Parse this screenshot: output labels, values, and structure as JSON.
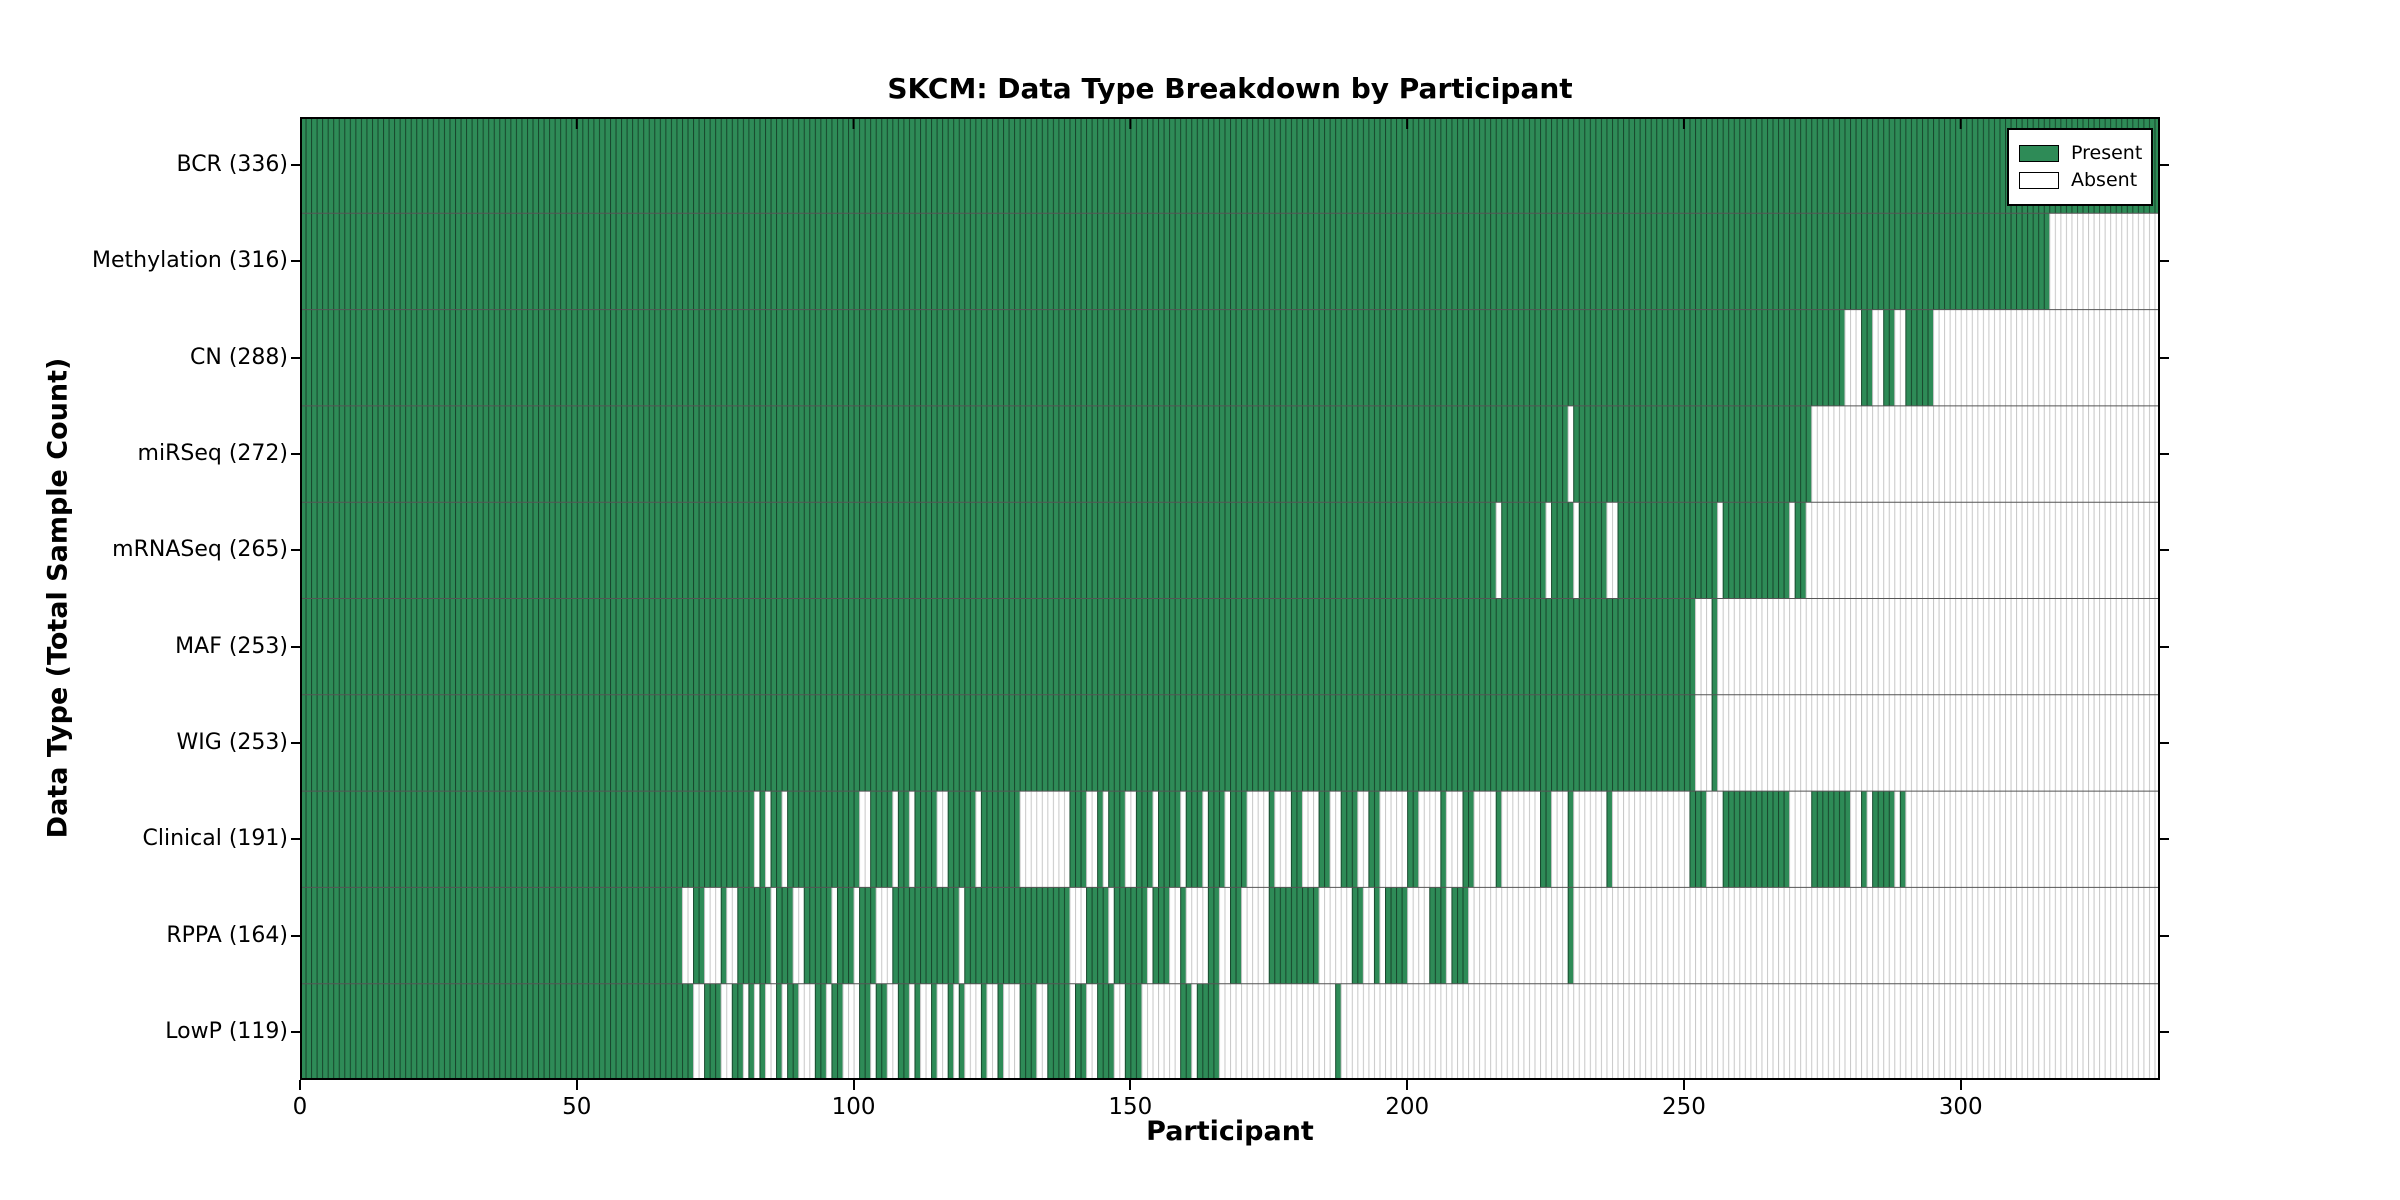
{
  "chart_data": {
    "type": "heatmap",
    "title": "SKCM: Data Type Breakdown by Participant",
    "xlabel": "Participant",
    "ylabel": "Data Type (Total Sample Count)",
    "x_ticks": [
      0,
      50,
      100,
      150,
      200,
      250,
      300
    ],
    "x_max": 336,
    "grid": false,
    "legend_position": "upper-right-inside",
    "colors": {
      "present": "#2e8b57",
      "absent": "#ffffff",
      "frame": "#000000",
      "row_divider": "#555555",
      "present_cell_line": "rgba(0,0,0,0.5)",
      "absent_cell_line": "rgba(0,0,0,0.22)"
    },
    "legend": [
      {
        "label": "Present",
        "color": "#2e8b57"
      },
      {
        "label": "Absent",
        "color": "#ffffff"
      }
    ],
    "rows": [
      {
        "label": "BCR",
        "total": 336,
        "present_segments": [
          [
            0,
            336
          ]
        ]
      },
      {
        "label": "Methylation",
        "total": 316,
        "present_segments": [
          [
            0,
            316
          ]
        ]
      },
      {
        "label": "CN",
        "total": 288,
        "present_segments": [
          [
            0,
            279
          ],
          [
            282,
            284
          ],
          [
            286,
            288
          ],
          [
            290,
            295
          ]
        ]
      },
      {
        "label": "miRSeq",
        "total": 272,
        "present_segments": [
          [
            0,
            229
          ],
          [
            230,
            273
          ]
        ]
      },
      {
        "label": "mRNASeq",
        "total": 265,
        "present_segments": [
          [
            0,
            216
          ],
          [
            217,
            225
          ],
          [
            226,
            230
          ],
          [
            231,
            236
          ],
          [
            238,
            256
          ],
          [
            257,
            269
          ],
          [
            270,
            272
          ]
        ]
      },
      {
        "label": "MAF",
        "total": 253,
        "present_segments": [
          [
            0,
            252
          ],
          [
            255,
            256
          ]
        ]
      },
      {
        "label": "WIG",
        "total": 253,
        "present_segments": [
          [
            0,
            252
          ],
          [
            255,
            256
          ]
        ]
      },
      {
        "label": "Clinical",
        "total": 191,
        "present_segments": [
          [
            0,
            82
          ],
          [
            83,
            84
          ],
          [
            85,
            87
          ],
          [
            88,
            101
          ],
          [
            103,
            107
          ],
          [
            108,
            110
          ],
          [
            111,
            115
          ],
          [
            117,
            122
          ],
          [
            123,
            130
          ],
          [
            139,
            142
          ],
          [
            144,
            145
          ],
          [
            146,
            149
          ],
          [
            151,
            154
          ],
          [
            155,
            159
          ],
          [
            160,
            163
          ],
          [
            164,
            167
          ],
          [
            168,
            171
          ],
          [
            175,
            176
          ],
          [
            179,
            181
          ],
          [
            184,
            186
          ],
          [
            188,
            191
          ],
          [
            193,
            195
          ],
          [
            200,
            202
          ],
          [
            206,
            207
          ],
          [
            210,
            212
          ],
          [
            216,
            217
          ],
          [
            224,
            226
          ],
          [
            229,
            230
          ],
          [
            236,
            237
          ],
          [
            251,
            254
          ],
          [
            257,
            269
          ],
          [
            273,
            280
          ],
          [
            282,
            283
          ],
          [
            284,
            288
          ],
          [
            289,
            290
          ]
        ]
      },
      {
        "label": "RPPA",
        "total": 164,
        "present_segments": [
          [
            0,
            69
          ],
          [
            71,
            73
          ],
          [
            76,
            77
          ],
          [
            79,
            85
          ],
          [
            86,
            89
          ],
          [
            91,
            96
          ],
          [
            97,
            100
          ],
          [
            101,
            104
          ],
          [
            107,
            119
          ],
          [
            120,
            139
          ],
          [
            142,
            146
          ],
          [
            147,
            153
          ],
          [
            154,
            157
          ],
          [
            159,
            160
          ],
          [
            164,
            166
          ],
          [
            168,
            170
          ],
          [
            175,
            184
          ],
          [
            190,
            192
          ],
          [
            194,
            195
          ],
          [
            196,
            200
          ],
          [
            204,
            207
          ],
          [
            208,
            211
          ],
          [
            229,
            230
          ]
        ]
      },
      {
        "label": "LowP",
        "total": 119,
        "present_segments": [
          [
            0,
            71
          ],
          [
            73,
            76
          ],
          [
            78,
            80
          ],
          [
            81,
            82
          ],
          [
            83,
            84
          ],
          [
            86,
            87
          ],
          [
            88,
            90
          ],
          [
            93,
            95
          ],
          [
            96,
            98
          ],
          [
            101,
            103
          ],
          [
            104,
            106
          ],
          [
            108,
            110
          ],
          [
            111,
            112
          ],
          [
            114,
            115
          ],
          [
            117,
            118
          ],
          [
            119,
            120
          ],
          [
            123,
            124
          ],
          [
            126,
            127
          ],
          [
            130,
            133
          ],
          [
            135,
            139
          ],
          [
            140,
            142
          ],
          [
            144,
            147
          ],
          [
            149,
            152
          ],
          [
            159,
            161
          ],
          [
            162,
            166
          ],
          [
            187,
            188
          ]
        ]
      }
    ]
  }
}
